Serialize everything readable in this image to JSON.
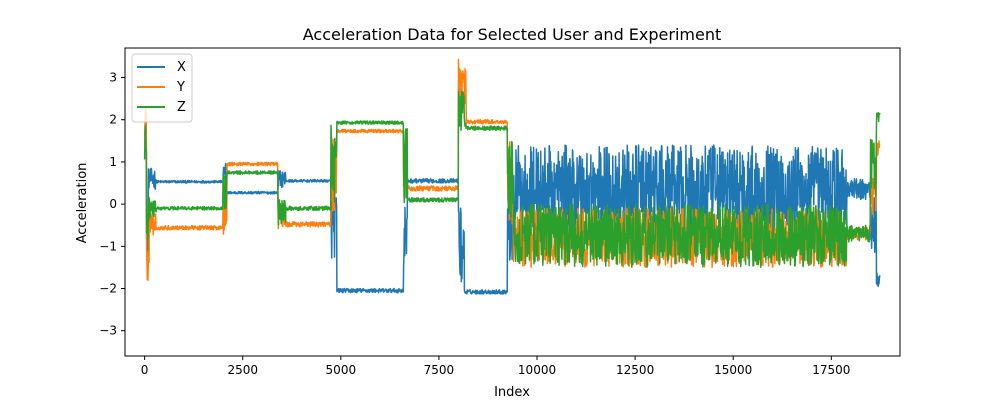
{
  "chart_data": {
    "type": "line",
    "title": "Acceleration Data for Selected User and Experiment",
    "xlabel": "Index",
    "ylabel": "Acceleration",
    "xlim": [
      -500,
      19250
    ],
    "ylim": [
      -3.6,
      3.7
    ],
    "xticks": [
      0,
      2500,
      5000,
      7500,
      10000,
      12500,
      15000,
      17500
    ],
    "xtick_labels": [
      "0",
      "2500",
      "5000",
      "7500",
      "10000",
      "12500",
      "15000",
      "17500"
    ],
    "yticks": [
      -3,
      -2,
      -1,
      0,
      1,
      2,
      3
    ],
    "ytick_labels": [
      "−3",
      "−2",
      "−1",
      "0",
      "1",
      "2",
      "3"
    ],
    "grid": false,
    "legend_position": "top-left",
    "series": [
      {
        "name": "X",
        "color": "#1f77b4",
        "segments": [
          {
            "x0": 0,
            "x1": 50,
            "level": 1.8,
            "noise": 0.4
          },
          {
            "x0": 50,
            "x1": 100,
            "level": -0.8,
            "noise": 0.8
          },
          {
            "x0": 100,
            "x1": 300,
            "level": 0.6,
            "noise": 0.25
          },
          {
            "x0": 300,
            "x1": 2000,
            "level": 0.53,
            "noise": 0.03
          },
          {
            "x0": 2000,
            "x1": 2100,
            "level": 0.6,
            "noise": 0.4
          },
          {
            "x0": 2100,
            "x1": 3400,
            "level": 0.27,
            "noise": 0.03
          },
          {
            "x0": 3400,
            "x1": 3600,
            "level": 0.6,
            "noise": 0.2
          },
          {
            "x0": 3600,
            "x1": 4750,
            "level": 0.55,
            "noise": 0.03
          },
          {
            "x0": 4750,
            "x1": 4900,
            "level": -0.5,
            "noise": 0.8
          },
          {
            "x0": 4900,
            "x1": 6600,
            "level": -2.05,
            "noise": 0.05
          },
          {
            "x0": 6600,
            "x1": 6700,
            "level": -0.8,
            "noise": 0.9
          },
          {
            "x0": 6700,
            "x1": 8000,
            "level": 0.55,
            "noise": 0.05
          },
          {
            "x0": 8000,
            "x1": 8150,
            "level": -1.0,
            "noise": 1.0
          },
          {
            "x0": 8150,
            "x1": 9250,
            "level": -2.08,
            "noise": 0.05
          },
          {
            "x0": 9250,
            "x1": 9400,
            "level": -0.5,
            "noise": 0.9
          },
          {
            "x0": 9400,
            "x1": 17900,
            "level": 0.35,
            "noise": 1.05
          },
          {
            "x0": 17900,
            "x1": 18500,
            "level": 0.35,
            "noise": 0.25
          },
          {
            "x0": 18500,
            "x1": 18650,
            "level": -0.5,
            "noise": 0.7
          },
          {
            "x0": 18650,
            "x1": 18750,
            "level": -1.75,
            "noise": 0.2
          }
        ]
      },
      {
        "name": "Y",
        "color": "#ff7f0e",
        "segments": [
          {
            "x0": 0,
            "x1": 50,
            "level": 2.0,
            "noise": 0.5
          },
          {
            "x0": 50,
            "x1": 120,
            "level": -1.4,
            "noise": 0.5
          },
          {
            "x0": 120,
            "x1": 300,
            "level": -0.5,
            "noise": 0.3
          },
          {
            "x0": 300,
            "x1": 2000,
            "level": -0.56,
            "noise": 0.05
          },
          {
            "x0": 2000,
            "x1": 2100,
            "level": -0.3,
            "noise": 0.5
          },
          {
            "x0": 2100,
            "x1": 3400,
            "level": 0.95,
            "noise": 0.04
          },
          {
            "x0": 3400,
            "x1": 3600,
            "level": -0.3,
            "noise": 0.3
          },
          {
            "x0": 3600,
            "x1": 4750,
            "level": -0.48,
            "noise": 0.06
          },
          {
            "x0": 4750,
            "x1": 4900,
            "level": 0.8,
            "noise": 1.0
          },
          {
            "x0": 4900,
            "x1": 6600,
            "level": 1.73,
            "noise": 0.04
          },
          {
            "x0": 6600,
            "x1": 6700,
            "level": 0.8,
            "noise": 1.0
          },
          {
            "x0": 6700,
            "x1": 8000,
            "level": 0.37,
            "noise": 0.06
          },
          {
            "x0": 8000,
            "x1": 8200,
            "level": 2.9,
            "noise": 0.6
          },
          {
            "x0": 8200,
            "x1": 9250,
            "level": 1.95,
            "noise": 0.05
          },
          {
            "x0": 9250,
            "x1": 9400,
            "level": 0.5,
            "noise": 1.0
          },
          {
            "x0": 9400,
            "x1": 17900,
            "level": -0.8,
            "noise": 0.7
          },
          {
            "x0": 17900,
            "x1": 18500,
            "level": -0.7,
            "noise": 0.15
          },
          {
            "x0": 18500,
            "x1": 18650,
            "level": 0.3,
            "noise": 0.6
          },
          {
            "x0": 18650,
            "x1": 18750,
            "level": 1.3,
            "noise": 0.2
          }
        ]
      },
      {
        "name": "Z",
        "color": "#2ca02c",
        "segments": [
          {
            "x0": 0,
            "x1": 50,
            "level": 1.4,
            "noise": 0.5
          },
          {
            "x0": 50,
            "x1": 120,
            "level": -0.4,
            "noise": 0.6
          },
          {
            "x0": 120,
            "x1": 300,
            "level": -0.1,
            "noise": 0.25
          },
          {
            "x0": 300,
            "x1": 2000,
            "level": -0.1,
            "noise": 0.04
          },
          {
            "x0": 2000,
            "x1": 2100,
            "level": 0.2,
            "noise": 0.5
          },
          {
            "x0": 2100,
            "x1": 3400,
            "level": 0.75,
            "noise": 0.04
          },
          {
            "x0": 3400,
            "x1": 3600,
            "level": -0.2,
            "noise": 0.3
          },
          {
            "x0": 3600,
            "x1": 4750,
            "level": -0.1,
            "noise": 0.05
          },
          {
            "x0": 4750,
            "x1": 4900,
            "level": 1.0,
            "noise": 1.0
          },
          {
            "x0": 4900,
            "x1": 6600,
            "level": 1.93,
            "noise": 0.04
          },
          {
            "x0": 6600,
            "x1": 6700,
            "level": 0.9,
            "noise": 0.9
          },
          {
            "x0": 6700,
            "x1": 8000,
            "level": 0.1,
            "noise": 0.05
          },
          {
            "x0": 8000,
            "x1": 8200,
            "level": 2.2,
            "noise": 0.5
          },
          {
            "x0": 8200,
            "x1": 9250,
            "level": 1.8,
            "noise": 0.05
          },
          {
            "x0": 9250,
            "x1": 9400,
            "level": 0.5,
            "noise": 1.0
          },
          {
            "x0": 9400,
            "x1": 17900,
            "level": -0.75,
            "noise": 0.75
          },
          {
            "x0": 17900,
            "x1": 18500,
            "level": -0.7,
            "noise": 0.2
          },
          {
            "x0": 18500,
            "x1": 18650,
            "level": 0.8,
            "noise": 0.8
          },
          {
            "x0": 18650,
            "x1": 18750,
            "level": 2.05,
            "noise": 0.12
          }
        ]
      }
    ]
  }
}
